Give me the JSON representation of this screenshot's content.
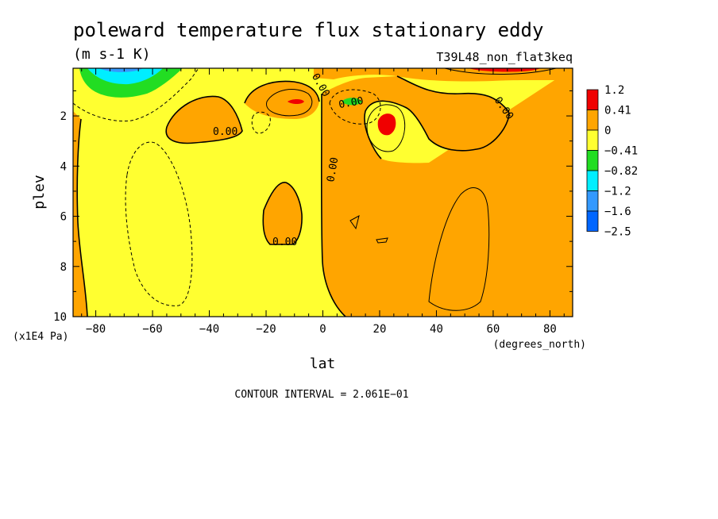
{
  "chart_data": {
    "type": "heatmap",
    "title": "poleward temperature flux stationary eddy",
    "units": "(m s-1 K)",
    "run_label": "T39L48_non_flat3keq",
    "xlabel": "lat",
    "x_units": "(degrees_north)",
    "ylabel": "plev",
    "y_units": "(x1E4 Pa)",
    "xlim": [
      -88,
      88
    ],
    "ylim": [
      10,
      0.1
    ],
    "y_inverted": true,
    "x_ticks": [
      -80,
      -60,
      -40,
      -20,
      0,
      20,
      40,
      60,
      80
    ],
    "x_tick_labels": [
      "−80",
      "−60",
      "−40",
      "−20",
      "0",
      "20",
      "40",
      "60",
      "80"
    ],
    "y_ticks": [
      2,
      4,
      6,
      8,
      10
    ],
    "y_tick_labels": [
      "2",
      "4",
      "6",
      "8",
      "10"
    ],
    "contour_interval_text": "CONTOUR INTERVAL = 2.061E−01",
    "contour_labels": [
      "0.00",
      "0.00",
      "0.00",
      "0.00",
      "0.00",
      "0.00"
    ],
    "colorbar": {
      "levels": [
        "1.2",
        "0.41",
        "0",
        "−0.41",
        "−0.82",
        "−1.2",
        "−1.6",
        "−2.5"
      ],
      "colors": [
        "#f00000",
        "#ffa500",
        "#ffff30",
        "#22dd22",
        "#00eeff",
        "#3399ff",
        "#0066ff"
      ]
    },
    "colors": {
      "positive": "#ffa500",
      "slight_negative": "#ffff30",
      "strong_positive": "#f00000",
      "green": "#22dd22",
      "cyan": "#00eeff",
      "blue": "#3399ff"
    }
  }
}
